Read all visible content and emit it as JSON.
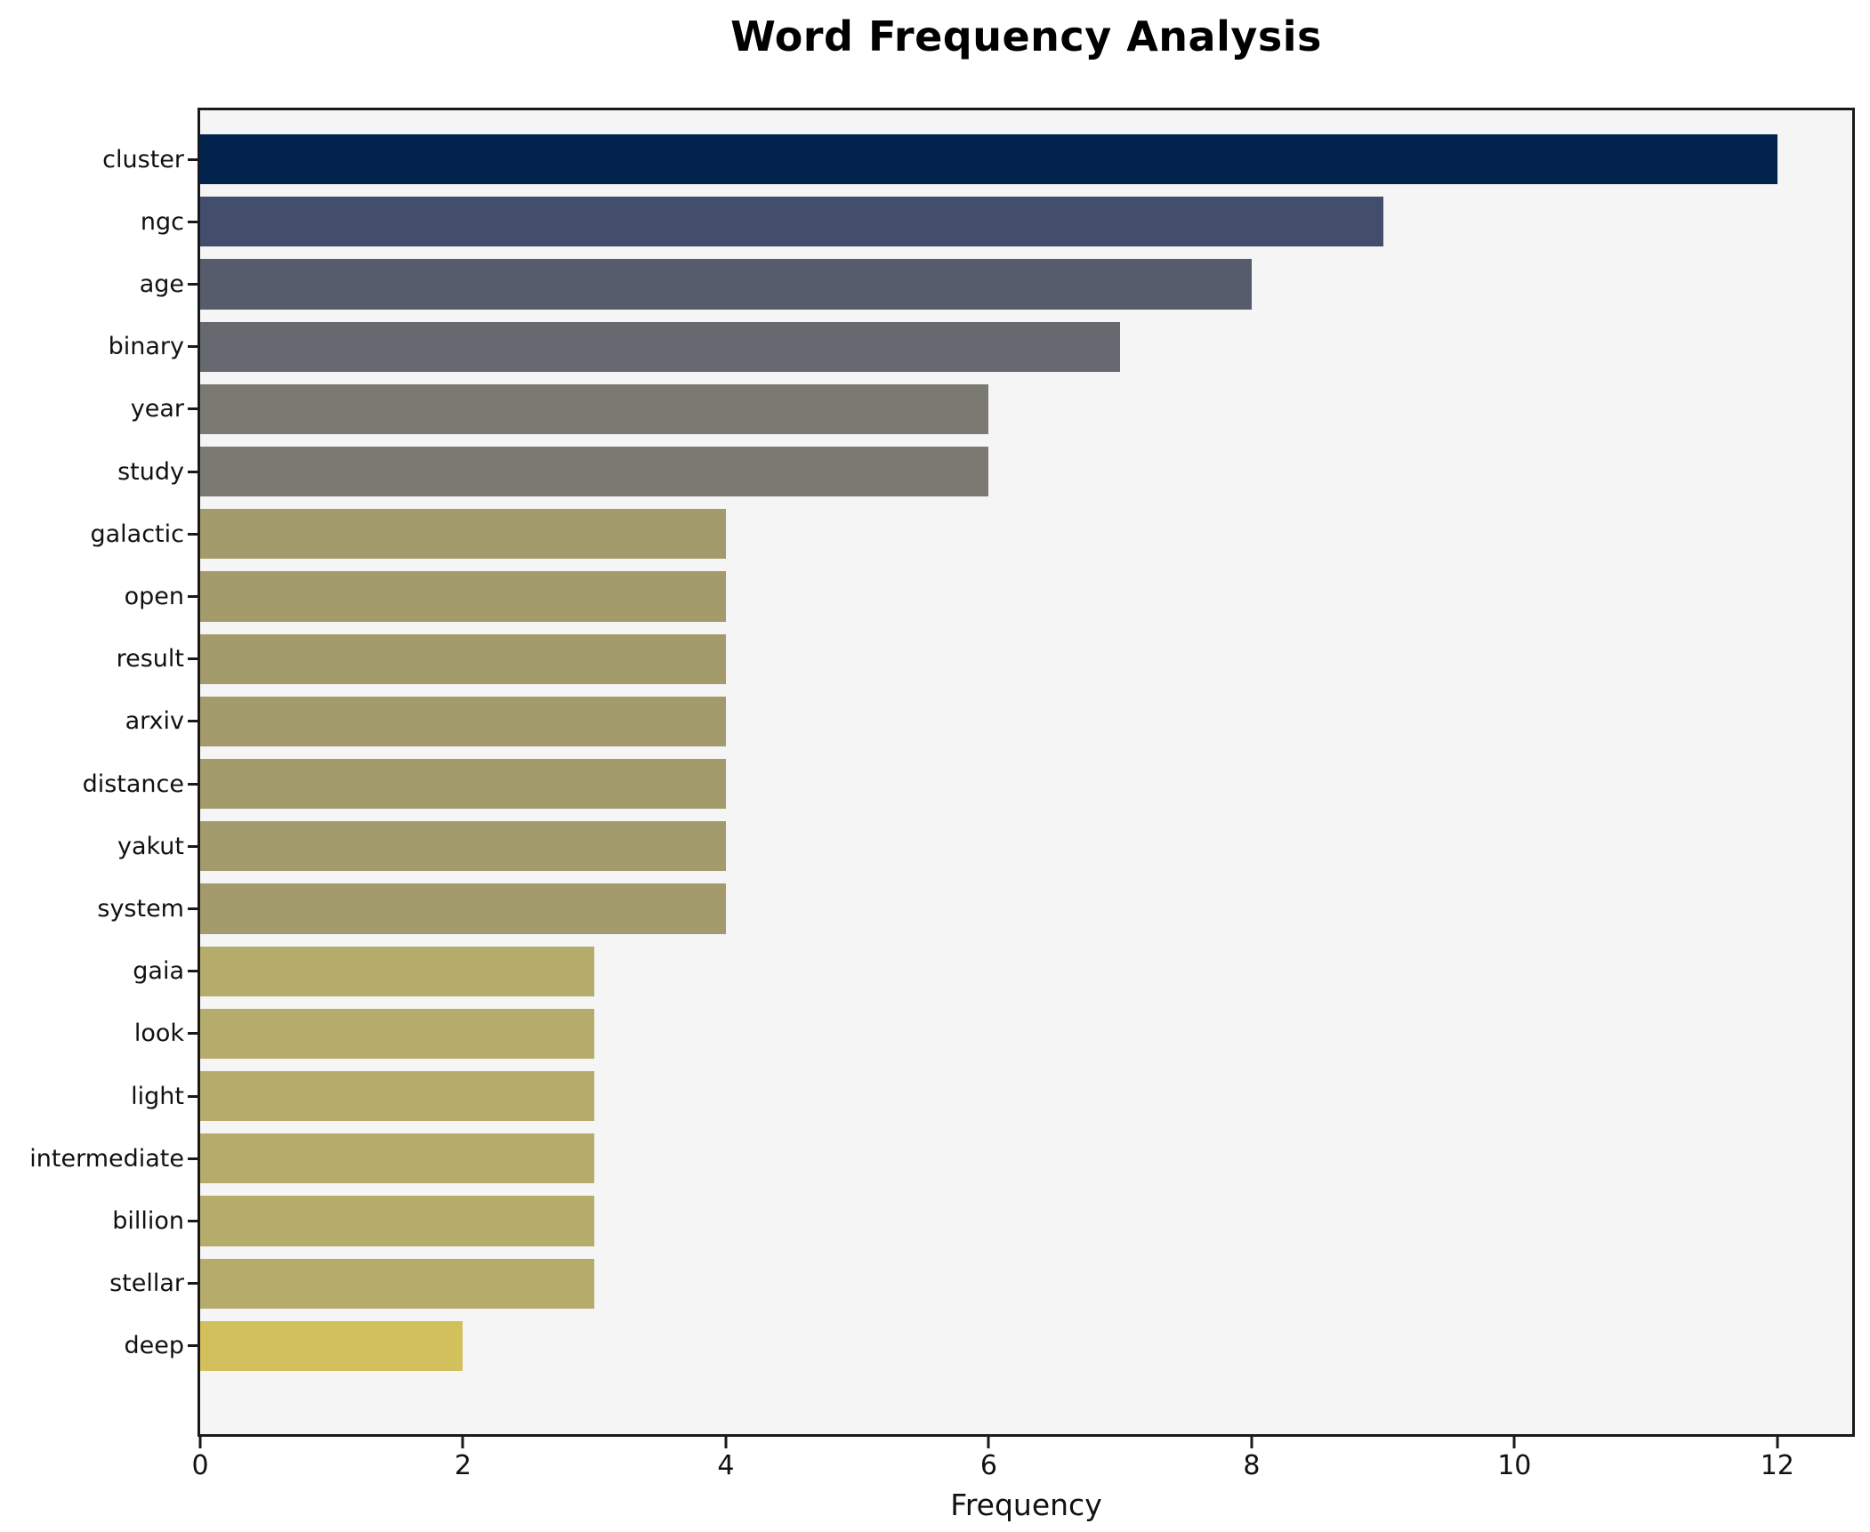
{
  "chart_data": {
    "type": "bar",
    "orientation": "horizontal",
    "title": "Word Frequency Analysis",
    "xlabel": "Frequency",
    "ylabel": "",
    "categories": [
      "cluster",
      "ngc",
      "age",
      "binary",
      "year",
      "study",
      "galactic",
      "open",
      "result",
      "arxiv",
      "distance",
      "yakut",
      "system",
      "gaia",
      "look",
      "light",
      "intermediate",
      "billion",
      "stellar",
      "deep"
    ],
    "values": [
      12,
      9,
      8,
      7,
      6,
      6,
      4,
      4,
      4,
      4,
      4,
      4,
      4,
      3,
      3,
      3,
      3,
      3,
      3,
      2
    ],
    "bar_colors": [
      "#03234f",
      "#424e6c",
      "#565c6c",
      "#66696f",
      "#7a7a73",
      "#7a7a73",
      "#a39b6b",
      "#a39b6b",
      "#a39b6b",
      "#a39b6b",
      "#a39b6b",
      "#a39b6b",
      "#a39b6b",
      "#b5ab6b",
      "#b5ab6b",
      "#b5ab6b",
      "#b5ab6b",
      "#b5ab6b",
      "#b5ab6b",
      "#d2c05c"
    ],
    "colormap": "cividis-reversed-by-value",
    "xlim": [
      0,
      12.57
    ],
    "xticks": [
      0,
      2,
      4,
      6,
      8,
      10,
      12
    ],
    "grid": false,
    "legend": "none",
    "plot_background": "#f5f5f6",
    "figure_background": "#ffffff",
    "spine_color": "#1a1a1a"
  }
}
